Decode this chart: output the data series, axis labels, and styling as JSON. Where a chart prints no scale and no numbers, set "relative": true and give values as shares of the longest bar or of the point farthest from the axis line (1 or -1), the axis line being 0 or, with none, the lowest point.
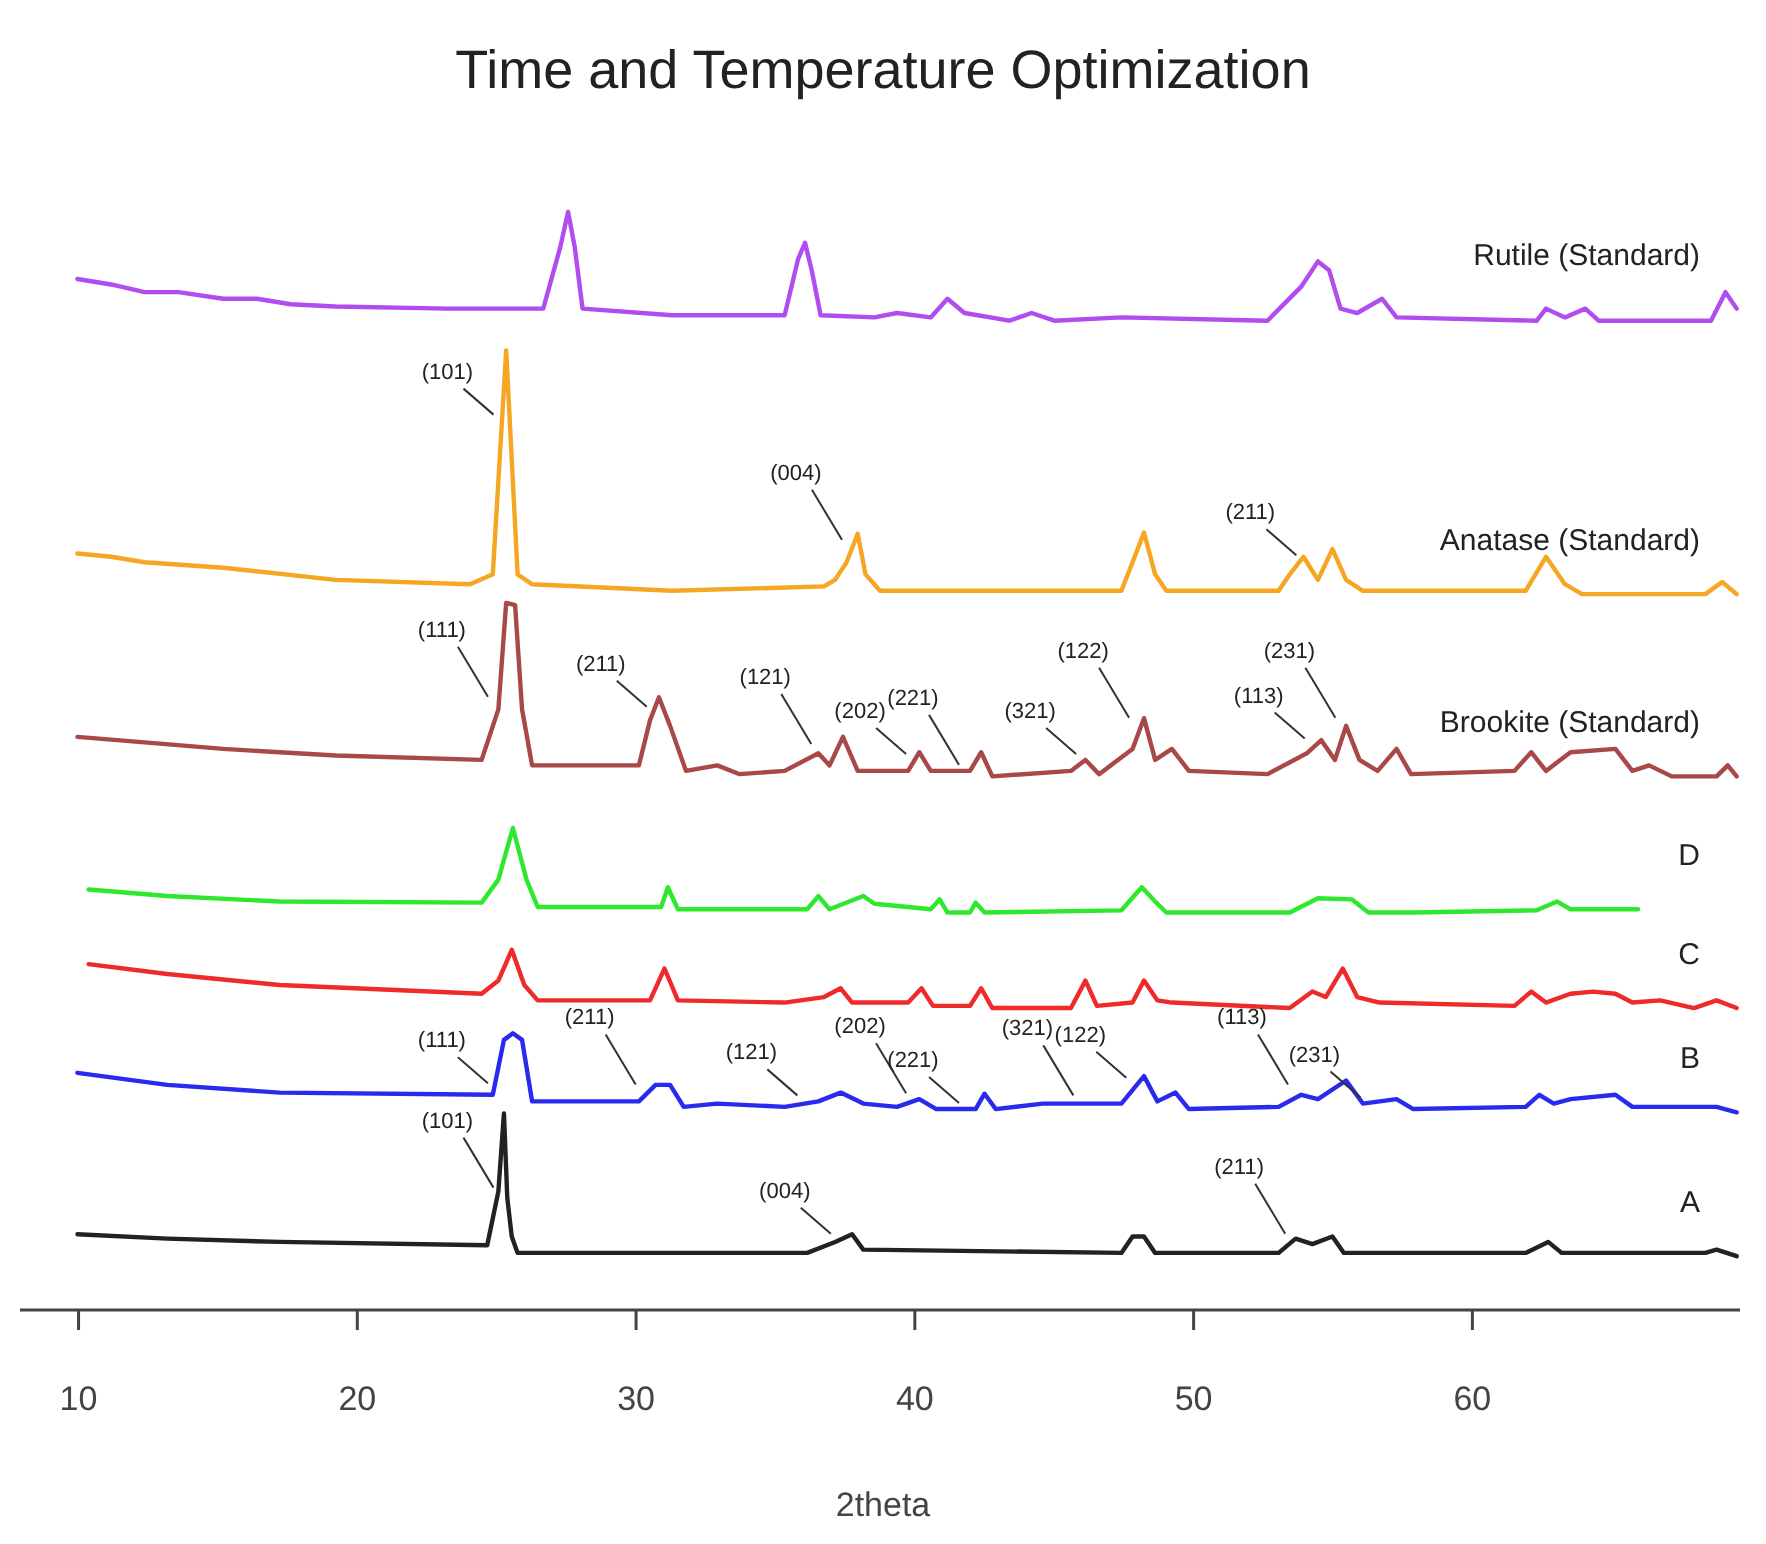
{
  "chart_data": {
    "type": "line",
    "title": "Time and Temperature Optimization",
    "xlabel": "2theta",
    "relative": true,
    "grid": false,
    "line_style": "solid",
    "xlim": [
      7.9,
      69.6
    ],
    "xticks": [
      10,
      20,
      30,
      40,
      50,
      60
    ],
    "series": [
      {
        "name": "Rutile (Standard)",
        "color": "#b04cf0",
        "x": [
          9.96,
          11.17,
          12.37,
          13.58,
          15.19,
          16.4,
          17.61,
          19.22,
          23.25,
          26.67,
          27.28,
          27.56,
          27.8,
          28.08,
          31.3,
          35.33,
          35.81,
          36.06,
          36.3,
          36.62,
          38.55,
          39.36,
          40.57,
          41.17,
          41.78,
          43.39,
          44.19,
          45.0,
          47.41,
          52.65,
          53.86,
          54.46,
          54.86,
          55.27,
          55.87,
          56.76,
          57.28,
          62.31,
          62.64,
          63.32,
          64.05,
          64.53,
          68.56,
          69.08,
          69.48
        ],
        "values": [
          0.939,
          0.934,
          0.927,
          0.927,
          0.921,
          0.921,
          0.916,
          0.914,
          0.912,
          0.912,
          0.968,
          1.0,
          0.968,
          0.912,
          0.906,
          0.906,
          0.957,
          0.972,
          0.947,
          0.906,
          0.904,
          0.908,
          0.904,
          0.921,
          0.908,
          0.901,
          0.908,
          0.901,
          0.904,
          0.901,
          0.932,
          0.955,
          0.947,
          0.912,
          0.908,
          0.921,
          0.904,
          0.901,
          0.912,
          0.904,
          0.912,
          0.901,
          0.901,
          0.927,
          0.912
        ]
      },
      {
        "name": "Anatase (Standard)",
        "color": "#f5a623",
        "x": [
          9.96,
          11.17,
          12.37,
          15.19,
          19.22,
          24.05,
          24.86,
          25.34,
          25.75,
          26.27,
          31.3,
          36.74,
          37.14,
          37.55,
          37.95,
          38.23,
          38.75,
          47.41,
          47.81,
          48.22,
          48.62,
          49.02,
          53.05,
          53.45,
          53.94,
          54.46,
          54.98,
          55.47,
          56.07,
          61.91,
          62.64,
          63.32,
          63.93,
          68.36,
          68.96,
          69.48
        ],
        "values": [
          0.689,
          0.686,
          0.681,
          0.676,
          0.665,
          0.661,
          0.67,
          0.874,
          0.67,
          0.661,
          0.655,
          0.659,
          0.665,
          0.681,
          0.707,
          0.67,
          0.655,
          0.655,
          0.681,
          0.708,
          0.67,
          0.655,
          0.655,
          0.67,
          0.686,
          0.665,
          0.693,
          0.665,
          0.655,
          0.655,
          0.686,
          0.661,
          0.652,
          0.652,
          0.663,
          0.652
        ]
      },
      {
        "name": "Brookite (Standard)",
        "color": "#a84848",
        "x": [
          9.96,
          12.37,
          15.19,
          19.22,
          24.46,
          25.06,
          25.34,
          25.66,
          25.91,
          26.27,
          30.1,
          30.5,
          30.82,
          31.22,
          31.79,
          32.91,
          33.72,
          35.33,
          36.54,
          36.94,
          37.42,
          37.95,
          39.76,
          40.16,
          40.57,
          41.98,
          42.38,
          42.78,
          45.6,
          46.12,
          46.61,
          47.81,
          48.22,
          48.62,
          49.22,
          49.83,
          52.65,
          54.06,
          54.58,
          55.07,
          55.47,
          55.95,
          56.6,
          57.28,
          57.8,
          61.51,
          62.11,
          62.64,
          63.52,
          65.13,
          65.74,
          66.34,
          67.15,
          68.76,
          69.16,
          69.48
        ],
        "values": [
          0.522,
          0.517,
          0.511,
          0.505,
          0.501,
          0.547,
          0.644,
          0.642,
          0.547,
          0.496,
          0.496,
          0.537,
          0.558,
          0.532,
          0.491,
          0.496,
          0.488,
          0.491,
          0.507,
          0.496,
          0.522,
          0.491,
          0.491,
          0.508,
          0.491,
          0.491,
          0.508,
          0.486,
          0.491,
          0.501,
          0.488,
          0.511,
          0.539,
          0.501,
          0.511,
          0.491,
          0.488,
          0.507,
          0.519,
          0.501,
          0.532,
          0.501,
          0.491,
          0.511,
          0.488,
          0.491,
          0.508,
          0.491,
          0.508,
          0.511,
          0.491,
          0.496,
          0.486,
          0.486,
          0.496,
          0.486
        ]
      },
      {
        "name": "D",
        "color": "#2ee82e",
        "x": [
          10.36,
          13.18,
          17.21,
          24.46,
          25.06,
          25.58,
          26.07,
          26.47,
          30.9,
          31.14,
          31.5,
          36.14,
          36.54,
          36.94,
          38.15,
          38.55,
          40.57,
          40.89,
          41.17,
          41.98,
          42.18,
          42.5,
          47.41,
          48.14,
          48.62,
          49.02,
          53.45,
          54.46,
          55.67,
          56.27,
          57.88,
          62.31,
          63.04,
          63.52,
          65.94
        ],
        "values": [
          0.383,
          0.377,
          0.372,
          0.371,
          0.392,
          0.439,
          0.392,
          0.367,
          0.367,
          0.385,
          0.365,
          0.365,
          0.377,
          0.365,
          0.377,
          0.37,
          0.365,
          0.374,
          0.362,
          0.362,
          0.371,
          0.362,
          0.364,
          0.385,
          0.372,
          0.362,
          0.362,
          0.375,
          0.374,
          0.362,
          0.362,
          0.364,
          0.372,
          0.365,
          0.365
        ]
      },
      {
        "name": "C",
        "color": "#ee2a2a",
        "x": [
          10.36,
          13.18,
          17.21,
          24.46,
          25.06,
          25.54,
          25.99,
          26.47,
          30.5,
          31.02,
          31.5,
          35.33,
          36.74,
          37.34,
          37.75,
          39.76,
          40.24,
          40.65,
          41.98,
          42.38,
          42.78,
          45.6,
          46.12,
          46.53,
          47.81,
          48.22,
          48.7,
          49.22,
          53.45,
          54.26,
          54.74,
          55.35,
          55.87,
          56.67,
          61.51,
          62.11,
          62.64,
          63.52,
          64.33,
          65.13,
          65.74,
          66.74,
          67.95,
          68.76,
          69.48
        ],
        "values": [
          0.315,
          0.306,
          0.296,
          0.288,
          0.3,
          0.328,
          0.296,
          0.282,
          0.282,
          0.311,
          0.282,
          0.28,
          0.285,
          0.293,
          0.28,
          0.28,
          0.293,
          0.277,
          0.277,
          0.293,
          0.275,
          0.275,
          0.3,
          0.277,
          0.28,
          0.3,
          0.282,
          0.28,
          0.275,
          0.29,
          0.285,
          0.311,
          0.285,
          0.28,
          0.277,
          0.29,
          0.28,
          0.288,
          0.29,
          0.288,
          0.28,
          0.282,
          0.275,
          0.282,
          0.275
        ]
      },
      {
        "name": "B",
        "color": "#2a2aee",
        "x": [
          9.96,
          13.18,
          17.21,
          24.86,
          25.26,
          25.58,
          25.91,
          26.27,
          30.1,
          30.7,
          31.22,
          31.71,
          32.91,
          35.33,
          36.54,
          37.34,
          38.15,
          39.36,
          40.16,
          40.77,
          42.18,
          42.5,
          42.9,
          44.59,
          45.2,
          47.41,
          48.22,
          48.7,
          49.35,
          49.83,
          53.05,
          53.86,
          54.46,
          55.47,
          56.07,
          57.28,
          57.88,
          61.91,
          62.4,
          62.92,
          63.52,
          65.13,
          65.74,
          68.76,
          69.48
        ],
        "values": [
          0.216,
          0.205,
          0.198,
          0.196,
          0.246,
          0.252,
          0.246,
          0.19,
          0.19,
          0.205,
          0.205,
          0.185,
          0.188,
          0.185,
          0.19,
          0.198,
          0.188,
          0.185,
          0.192,
          0.183,
          0.183,
          0.197,
          0.183,
          0.188,
          0.188,
          0.188,
          0.213,
          0.19,
          0.198,
          0.183,
          0.185,
          0.196,
          0.192,
          0.209,
          0.188,
          0.192,
          0.183,
          0.185,
          0.196,
          0.188,
          0.192,
          0.196,
          0.185,
          0.185,
          0.18
        ]
      },
      {
        "name": "A",
        "color": "#222222",
        "x": [
          9.96,
          13.18,
          17.21,
          24.66,
          25.06,
          25.26,
          25.38,
          25.54,
          25.75,
          36.14,
          37.14,
          37.75,
          38.15,
          47.41,
          47.81,
          48.22,
          48.62,
          53.05,
          53.66,
          54.26,
          54.98,
          55.39,
          61.91,
          62.72,
          63.2,
          68.36,
          68.76,
          69.48
        ],
        "values": [
          0.069,
          0.065,
          0.062,
          0.059,
          0.108,
          0.179,
          0.102,
          0.067,
          0.052,
          0.052,
          0.062,
          0.069,
          0.055,
          0.052,
          0.067,
          0.067,
          0.052,
          0.052,
          0.065,
          0.06,
          0.067,
          0.052,
          0.052,
          0.062,
          0.052,
          0.052,
          0.055,
          0.049
        ]
      }
    ],
    "annotations": [
      {
        "text": "(101)",
        "x": 25.1,
        "y": 0.81
      },
      {
        "text": "(004)",
        "x": 37.6,
        "y": 0.696
      },
      {
        "text": "(211)",
        "x": 53.9,
        "y": 0.682
      },
      {
        "text": "(111)",
        "x": 24.9,
        "y": 0.553
      },
      {
        "text": "(211)",
        "x": 30.6,
        "y": 0.544
      },
      {
        "text": "(121)",
        "x": 36.5,
        "y": 0.51
      },
      {
        "text": "(202)",
        "x": 39.9,
        "y": 0.501
      },
      {
        "text": "(221)",
        "x": 41.8,
        "y": 0.491
      },
      {
        "text": "(321)",
        "x": 46.0,
        "y": 0.501
      },
      {
        "text": "(122)",
        "x": 47.9,
        "y": 0.534
      },
      {
        "text": "(113)",
        "x": 54.2,
        "y": 0.515
      },
      {
        "text": "(231)",
        "x": 55.3,
        "y": 0.534
      },
      {
        "text": "(111)",
        "x": 24.9,
        "y": 0.201
      },
      {
        "text": "(211)",
        "x": 30.2,
        "y": 0.2
      },
      {
        "text": "(121)",
        "x": 36.0,
        "y": 0.19
      },
      {
        "text": "(202)",
        "x": 39.9,
        "y": 0.192
      },
      {
        "text": "(221)",
        "x": 41.8,
        "y": 0.183
      },
      {
        "text": "(321)",
        "x": 45.9,
        "y": 0.19
      },
      {
        "text": "(122)",
        "x": 47.8,
        "y": 0.206
      },
      {
        "text": "(113)",
        "x": 53.6,
        "y": 0.2
      },
      {
        "text": "(231)",
        "x": 56.2,
        "y": 0.188
      },
      {
        "text": "(101)",
        "x": 25.1,
        "y": 0.106
      },
      {
        "text": "(004)",
        "x": 37.2,
        "y": 0.064
      },
      {
        "text": "(211)",
        "x": 53.5,
        "y": 0.064
      }
    ]
  }
}
